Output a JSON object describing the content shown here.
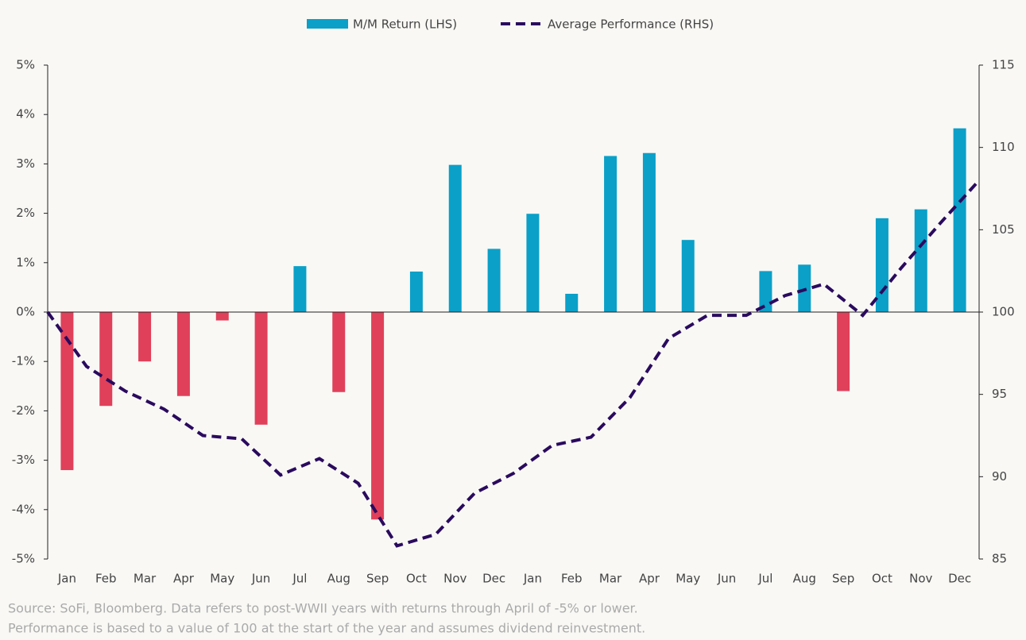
{
  "chart_data": {
    "type": "bar",
    "categories": [
      "Jan",
      "Feb",
      "Mar",
      "Apr",
      "May",
      "Jun",
      "Jul",
      "Aug",
      "Sep",
      "Oct",
      "Nov",
      "Dec",
      "Jan",
      "Feb",
      "Mar",
      "Apr",
      "May",
      "Jun",
      "Jul",
      "Aug",
      "Sep",
      "Oct",
      "Nov",
      "Dec"
    ],
    "series": [
      {
        "name": "M/M Return (LHS)",
        "type": "bar",
        "axis": "y",
        "color": "#0aa0c8",
        "negative_color": "#e0405a",
        "values": [
          -3.2,
          -1.9,
          -1.0,
          -1.7,
          -0.17,
          -2.28,
          0.93,
          -1.62,
          -4.2,
          0.82,
          2.98,
          1.28,
          1.99,
          0.37,
          3.16,
          3.22,
          1.46,
          0,
          0.83,
          0.96,
          -1.6,
          1.9,
          2.08,
          3.72
        ]
      },
      {
        "name": "Average Performance (RHS)",
        "type": "line",
        "axis": "y2",
        "color": "#2a0a5e",
        "dashed": true,
        "x": [
          0,
          1,
          2,
          3,
          4,
          5,
          6,
          7,
          8,
          9,
          10,
          11,
          12,
          13,
          14,
          15,
          16,
          17,
          18,
          19,
          20,
          21,
          22,
          23,
          24
        ],
        "values": [
          100,
          96.7,
          95.2,
          94.1,
          92.5,
          92.3,
          90.1,
          91.1,
          89.6,
          85.8,
          86.5,
          89.0,
          90.2,
          91.9,
          92.4,
          94.8,
          98.4,
          99.8,
          99.8,
          101.0,
          101.7,
          99.8,
          102.7,
          105.4,
          108.0
        ]
      }
    ],
    "xlim": [
      0,
      24
    ],
    "ylim": [
      -5,
      5
    ],
    "yticks": [
      {
        "value": 5,
        "label": "5%"
      },
      {
        "value": 4,
        "label": "4%"
      },
      {
        "value": 3,
        "label": "3%"
      },
      {
        "value": 2,
        "label": "2%"
      },
      {
        "value": 1,
        "label": "1%"
      },
      {
        "value": 0,
        "label": "0%"
      },
      {
        "value": -1,
        "label": "-1%"
      },
      {
        "value": -2,
        "label": "-2%"
      },
      {
        "value": -3,
        "label": "-3%"
      },
      {
        "value": -4,
        "label": "-4%"
      },
      {
        "value": -5,
        "label": "-5%"
      }
    ],
    "y2lim": [
      85,
      115
    ],
    "y2ticks": [
      85,
      90,
      95,
      100,
      105,
      110,
      115
    ],
    "grid": false,
    "legend": "top",
    "notes": [
      "Source: SoFi, Bloomberg. Data refers to post-WWII years with returns through April of -5% or lower.",
      "Performance is based to a value of 100 at the start of the year and assumes dividend reinvestment."
    ]
  }
}
